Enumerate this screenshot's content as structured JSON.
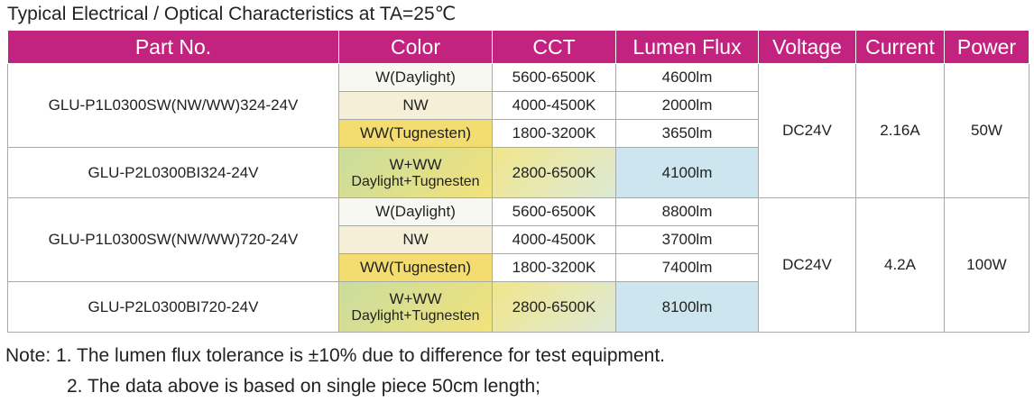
{
  "title": "Typical Electrical / Optical Characteristics at TA=25℃",
  "table": {
    "header": [
      "Part No.",
      "Color",
      "CCT",
      "Lumen Flux",
      "Voltage",
      "Current",
      "Power"
    ],
    "groups": [
      {
        "parts": [
          {
            "part_no": "GLU-P1L0300SW(NW/WW)324-24V",
            "variants": [
              {
                "color": "W(Daylight)",
                "cct": "5600-6500K",
                "lumen_flux": "4600lm"
              },
              {
                "color": "NW",
                "cct": "4000-4500K",
                "lumen_flux": "2000lm"
              },
              {
                "color": "WW(Tugnesten)",
                "cct": "1800-3200K",
                "lumen_flux": "3650lm"
              }
            ]
          },
          {
            "part_no": "GLU-P2L0300BI324-24V",
            "variants": [
              {
                "color": "W+WW",
                "color_detail": "Daylight+Tugnesten",
                "cct": "2800-6500K",
                "lumen_flux": "4100lm"
              }
            ]
          }
        ],
        "voltage": "DC24V",
        "current": "2.16A",
        "power": "50W"
      },
      {
        "parts": [
          {
            "part_no": "GLU-P1L0300SW(NW/WW)720-24V",
            "variants": [
              {
                "color": "W(Daylight)",
                "cct": "5600-6500K",
                "lumen_flux": "8800lm"
              },
              {
                "color": "NW",
                "cct": "4000-4500K",
                "lumen_flux": "3700lm"
              },
              {
                "color": "WW(Tugnesten)",
                "cct": "1800-3200K",
                "lumen_flux": "7400lm"
              }
            ]
          },
          {
            "part_no": "GLU-P2L0300BI720-24V",
            "variants": [
              {
                "color": "W+WW",
                "color_detail": "Daylight+Tugnesten",
                "cct": "2800-6500K",
                "lumen_flux": "8100lm"
              }
            ]
          }
        ],
        "voltage": "DC24V",
        "current": "4.2A",
        "power": "100W"
      }
    ]
  },
  "notes": {
    "label": "Note:",
    "items": [
      "1. The lumen flux tolerance is ±10% due to difference for test equipment.",
      "2. The data above is based on single piece 50cm length;"
    ]
  }
}
